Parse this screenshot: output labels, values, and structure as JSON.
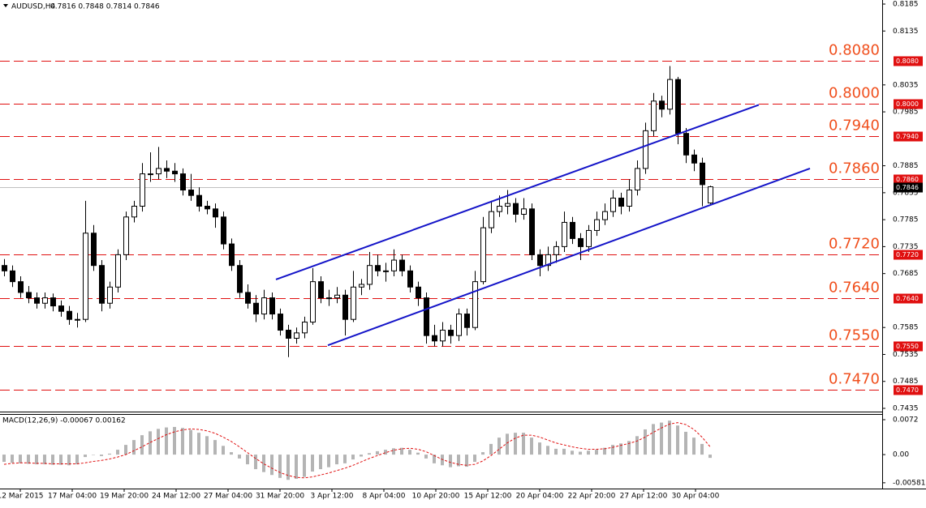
{
  "chart_data": {
    "type": "candlestick",
    "title": "AUDUSD,H4",
    "ohlc_text": "0.7816 0.7848 0.7814 0.7846",
    "xlim": [
      -0.5,
      108.2
    ],
    "ylim": [
      0.7435,
      0.8185
    ],
    "yticks": [
      0.8185,
      0.8135,
      0.8035,
      0.7985,
      0.7885,
      0.7835,
      0.7785,
      0.7735,
      0.7685,
      0.7585,
      0.7535,
      0.7485,
      0.7435
    ],
    "current_price": 0.7846,
    "up_color": "#ffffff",
    "down_color": "#000000",
    "level_color": "#e01010",
    "level_text_color": "#f0501e",
    "levels": [
      {
        "value": 0.808,
        "label": "0.8080"
      },
      {
        "value": 0.8,
        "label": "0.8000"
      },
      {
        "value": 0.794,
        "label": "0.7940"
      },
      {
        "value": 0.786,
        "label": "0.7860"
      },
      {
        "value": 0.772,
        "label": "0.7720"
      },
      {
        "value": 0.764,
        "label": "0.7640"
      },
      {
        "value": 0.755,
        "label": "0.7550"
      },
      {
        "value": 0.747,
        "label": "0.7470"
      }
    ],
    "channels": [
      {
        "color": "#1414c8",
        "x": [
          33.5,
          93
        ],
        "y": [
          0.7674,
          0.7998
        ]
      },
      {
        "color": "#1414c8",
        "x": [
          39.9,
          99.3
        ],
        "y": [
          0.7552,
          0.788
        ]
      }
    ],
    "xlabels": [
      "12 Mar 2015",
      "17 Mar 04:00",
      "19 Mar 20:00",
      "24 Mar 12:00",
      "27 Mar 04:00",
      "31 Mar 20:00",
      "3 Apr 12:00",
      "8 Apr 04:00",
      "10 Apr 20:00",
      "15 Apr 12:00",
      "20 Apr 04:00",
      "22 Apr 20:00",
      "27 Apr 12:00",
      "30 Apr 04:00"
    ],
    "candles": [
      [
        0.77,
        0.7712,
        0.768,
        0.769
      ],
      [
        0.769,
        0.77,
        0.766,
        0.767
      ],
      [
        0.767,
        0.768,
        0.764,
        0.765
      ],
      [
        0.765,
        0.7662,
        0.763,
        0.764
      ],
      [
        0.764,
        0.765,
        0.762,
        0.763
      ],
      [
        0.763,
        0.765,
        0.762,
        0.764
      ],
      [
        0.764,
        0.7648,
        0.7615,
        0.7625
      ],
      [
        0.7625,
        0.7635,
        0.7605,
        0.7615
      ],
      [
        0.7615,
        0.7625,
        0.759,
        0.76
      ],
      [
        0.76,
        0.7612,
        0.7585,
        0.76
      ],
      [
        0.76,
        0.782,
        0.7595,
        0.776
      ],
      [
        0.776,
        0.7775,
        0.769,
        0.77
      ],
      [
        0.77,
        0.771,
        0.7615,
        0.763
      ],
      [
        0.763,
        0.767,
        0.762,
        0.766
      ],
      [
        0.766,
        0.773,
        0.765,
        0.772
      ],
      [
        0.772,
        0.78,
        0.771,
        0.779
      ],
      [
        0.779,
        0.782,
        0.778,
        0.781
      ],
      [
        0.781,
        0.789,
        0.78,
        0.787
      ],
      [
        0.787,
        0.791,
        0.7855,
        0.787
      ],
      [
        0.787,
        0.792,
        0.786,
        0.788
      ],
      [
        0.788,
        0.7895,
        0.7862,
        0.7875
      ],
      [
        0.7875,
        0.789,
        0.7855,
        0.787
      ],
      [
        0.787,
        0.788,
        0.783,
        0.784
      ],
      [
        0.784,
        0.787,
        0.782,
        0.783
      ],
      [
        0.783,
        0.7845,
        0.78,
        0.781
      ],
      [
        0.781,
        0.782,
        0.7795,
        0.7805
      ],
      [
        0.7805,
        0.7815,
        0.777,
        0.779
      ],
      [
        0.779,
        0.78,
        0.773,
        0.774
      ],
      [
        0.774,
        0.775,
        0.769,
        0.77
      ],
      [
        0.77,
        0.771,
        0.764,
        0.765
      ],
      [
        0.765,
        0.7665,
        0.762,
        0.763
      ],
      [
        0.763,
        0.7645,
        0.7595,
        0.761
      ],
      [
        0.761,
        0.7655,
        0.76,
        0.764
      ],
      [
        0.764,
        0.765,
        0.76,
        0.761
      ],
      [
        0.761,
        0.762,
        0.757,
        0.758
      ],
      [
        0.758,
        0.759,
        0.753,
        0.7565
      ],
      [
        0.7565,
        0.7585,
        0.7555,
        0.7575
      ],
      [
        0.7575,
        0.7605,
        0.7565,
        0.7595
      ],
      [
        0.7595,
        0.7695,
        0.759,
        0.767
      ],
      [
        0.767,
        0.768,
        0.763,
        0.764
      ],
      [
        0.764,
        0.7655,
        0.7625,
        0.764
      ],
      [
        0.764,
        0.766,
        0.763,
        0.7645
      ],
      [
        0.7645,
        0.7655,
        0.757,
        0.76
      ],
      [
        0.76,
        0.769,
        0.7595,
        0.766
      ],
      [
        0.766,
        0.7675,
        0.7645,
        0.7665
      ],
      [
        0.7665,
        0.7725,
        0.7655,
        0.77
      ],
      [
        0.77,
        0.772,
        0.768,
        0.769
      ],
      [
        0.769,
        0.7705,
        0.767,
        0.769
      ],
      [
        0.769,
        0.773,
        0.768,
        0.771
      ],
      [
        0.771,
        0.772,
        0.768,
        0.769
      ],
      [
        0.769,
        0.77,
        0.765,
        0.766
      ],
      [
        0.766,
        0.767,
        0.7625,
        0.764
      ],
      [
        0.764,
        0.765,
        0.7555,
        0.757
      ],
      [
        0.757,
        0.759,
        0.755,
        0.756
      ],
      [
        0.756,
        0.7595,
        0.755,
        0.758
      ],
      [
        0.758,
        0.759,
        0.7555,
        0.757
      ],
      [
        0.757,
        0.762,
        0.756,
        0.761
      ],
      [
        0.761,
        0.762,
        0.757,
        0.7585
      ],
      [
        0.7585,
        0.769,
        0.758,
        0.767
      ],
      [
        0.767,
        0.779,
        0.7665,
        0.777
      ],
      [
        0.777,
        0.782,
        0.776,
        0.78
      ],
      [
        0.78,
        0.783,
        0.779,
        0.781
      ],
      [
        0.781,
        0.784,
        0.7795,
        0.7815
      ],
      [
        0.7815,
        0.7825,
        0.778,
        0.7795
      ],
      [
        0.7795,
        0.7825,
        0.7785,
        0.7805
      ],
      [
        0.7805,
        0.7815,
        0.771,
        0.772
      ],
      [
        0.772,
        0.773,
        0.768,
        0.77
      ],
      [
        0.77,
        0.7735,
        0.769,
        0.772
      ],
      [
        0.772,
        0.7745,
        0.7705,
        0.7735
      ],
      [
        0.7735,
        0.78,
        0.7725,
        0.778
      ],
      [
        0.778,
        0.779,
        0.774,
        0.775
      ],
      [
        0.775,
        0.776,
        0.771,
        0.7735
      ],
      [
        0.7735,
        0.7775,
        0.7725,
        0.7765
      ],
      [
        0.7765,
        0.78,
        0.7755,
        0.7785
      ],
      [
        0.7785,
        0.7815,
        0.7775,
        0.78
      ],
      [
        0.78,
        0.784,
        0.779,
        0.7825
      ],
      [
        0.7825,
        0.7835,
        0.7795,
        0.781
      ],
      [
        0.781,
        0.786,
        0.78,
        0.784
      ],
      [
        0.784,
        0.7895,
        0.783,
        0.788
      ],
      [
        0.788,
        0.7965,
        0.787,
        0.795
      ],
      [
        0.795,
        0.802,
        0.794,
        0.8005
      ],
      [
        0.8005,
        0.8015,
        0.7975,
        0.799
      ],
      [
        0.799,
        0.807,
        0.798,
        0.8045
      ],
      [
        0.8045,
        0.805,
        0.7925,
        0.7945
      ],
      [
        0.7945,
        0.7955,
        0.789,
        0.7905
      ],
      [
        0.7905,
        0.7915,
        0.7875,
        0.789
      ],
      [
        0.789,
        0.79,
        0.781,
        0.785
      ],
      [
        0.7816,
        0.7848,
        0.7814,
        0.7846
      ]
    ],
    "macd": {
      "title": "MACD(12,26,9) -0.00067 0.00162",
      "ylim": [
        -0.007,
        0.0082
      ],
      "yticks": [
        0.0072,
        {
          "value": 0,
          "label": "0.00"
        },
        -0.00581
      ],
      "histogram_color": "#b4b4b4",
      "signal_color": "#e01010",
      "histogram": [
        -0.0015,
        -0.0017,
        -0.0018,
        -0.0019,
        -0.002,
        -0.002,
        -0.0021,
        -0.0021,
        -0.0022,
        -0.002,
        -0.0005,
        0,
        -0.0003,
        0.0002,
        0.001,
        0.002,
        0.003,
        0.004,
        0.0048,
        0.0053,
        0.0056,
        0.0057,
        0.0055,
        0.0051,
        0.0045,
        0.0038,
        0.003,
        0.0018,
        0.0005,
        -0.0008,
        -0.002,
        -0.003,
        -0.0036,
        -0.0042,
        -0.0048,
        -0.0052,
        -0.005,
        -0.0046,
        -0.0035,
        -0.003,
        -0.0026,
        -0.002,
        -0.0018,
        -0.001,
        -0.0004,
        0.0003,
        0.0007,
        0.001,
        0.0013,
        0.0014,
        0.001,
        0.0004,
        -0.0008,
        -0.0018,
        -0.0022,
        -0.0026,
        -0.0024,
        -0.0025,
        -0.0015,
        0.0005,
        0.0022,
        0.0035,
        0.0043,
        0.0045,
        0.0045,
        0.0035,
        0.0025,
        0.0018,
        0.0012,
        0.0012,
        0.0008,
        0.0006,
        0.0008,
        0.001,
        0.0014,
        0.002,
        0.0023,
        0.0028,
        0.0038,
        0.0052,
        0.0063,
        0.0066,
        0.007,
        0.006,
        0.0047,
        0.0035,
        0.0022,
        -0.00067
      ],
      "signal": [
        -0.002,
        -0.0018,
        -0.0017,
        -0.0017,
        -0.0018,
        -0.0018,
        -0.0019,
        -0.0019,
        -0.0019,
        -0.0019,
        -0.0017,
        -0.0014,
        -0.0012,
        -0.0009,
        -0.0005,
        0,
        0.0008,
        0.0016,
        0.0025,
        0.0033,
        0.0041,
        0.0047,
        0.0051,
        0.0053,
        0.0052,
        0.0049,
        0.0044,
        0.0036,
        0.0027,
        0.0016,
        0.0004,
        -0.0008,
        -0.0019,
        -0.0028,
        -0.0037,
        -0.0043,
        -0.0047,
        -0.0048,
        -0.0046,
        -0.0042,
        -0.0038,
        -0.0033,
        -0.0028,
        -0.0022,
        -0.0015,
        -0.0008,
        -0.0002,
        0.0004,
        0.0009,
        0.0012,
        0.0013,
        0.0011,
        0.0006,
        -0.0002,
        -0.001,
        -0.0016,
        -0.002,
        -0.0022,
        -0.002,
        -0.0013,
        -0.0002,
        0.0011,
        0.0024,
        0.0034,
        0.004,
        0.004,
        0.0036,
        0.003,
        0.0024,
        0.002,
        0.0016,
        0.0013,
        0.0011,
        0.0011,
        0.0012,
        0.0015,
        0.0019,
        0.0023,
        0.0028,
        0.0036,
        0.0046,
        0.0055,
        0.0063,
        0.0066,
        0.0062,
        0.0052,
        0.0036,
        0.00162
      ]
    }
  }
}
